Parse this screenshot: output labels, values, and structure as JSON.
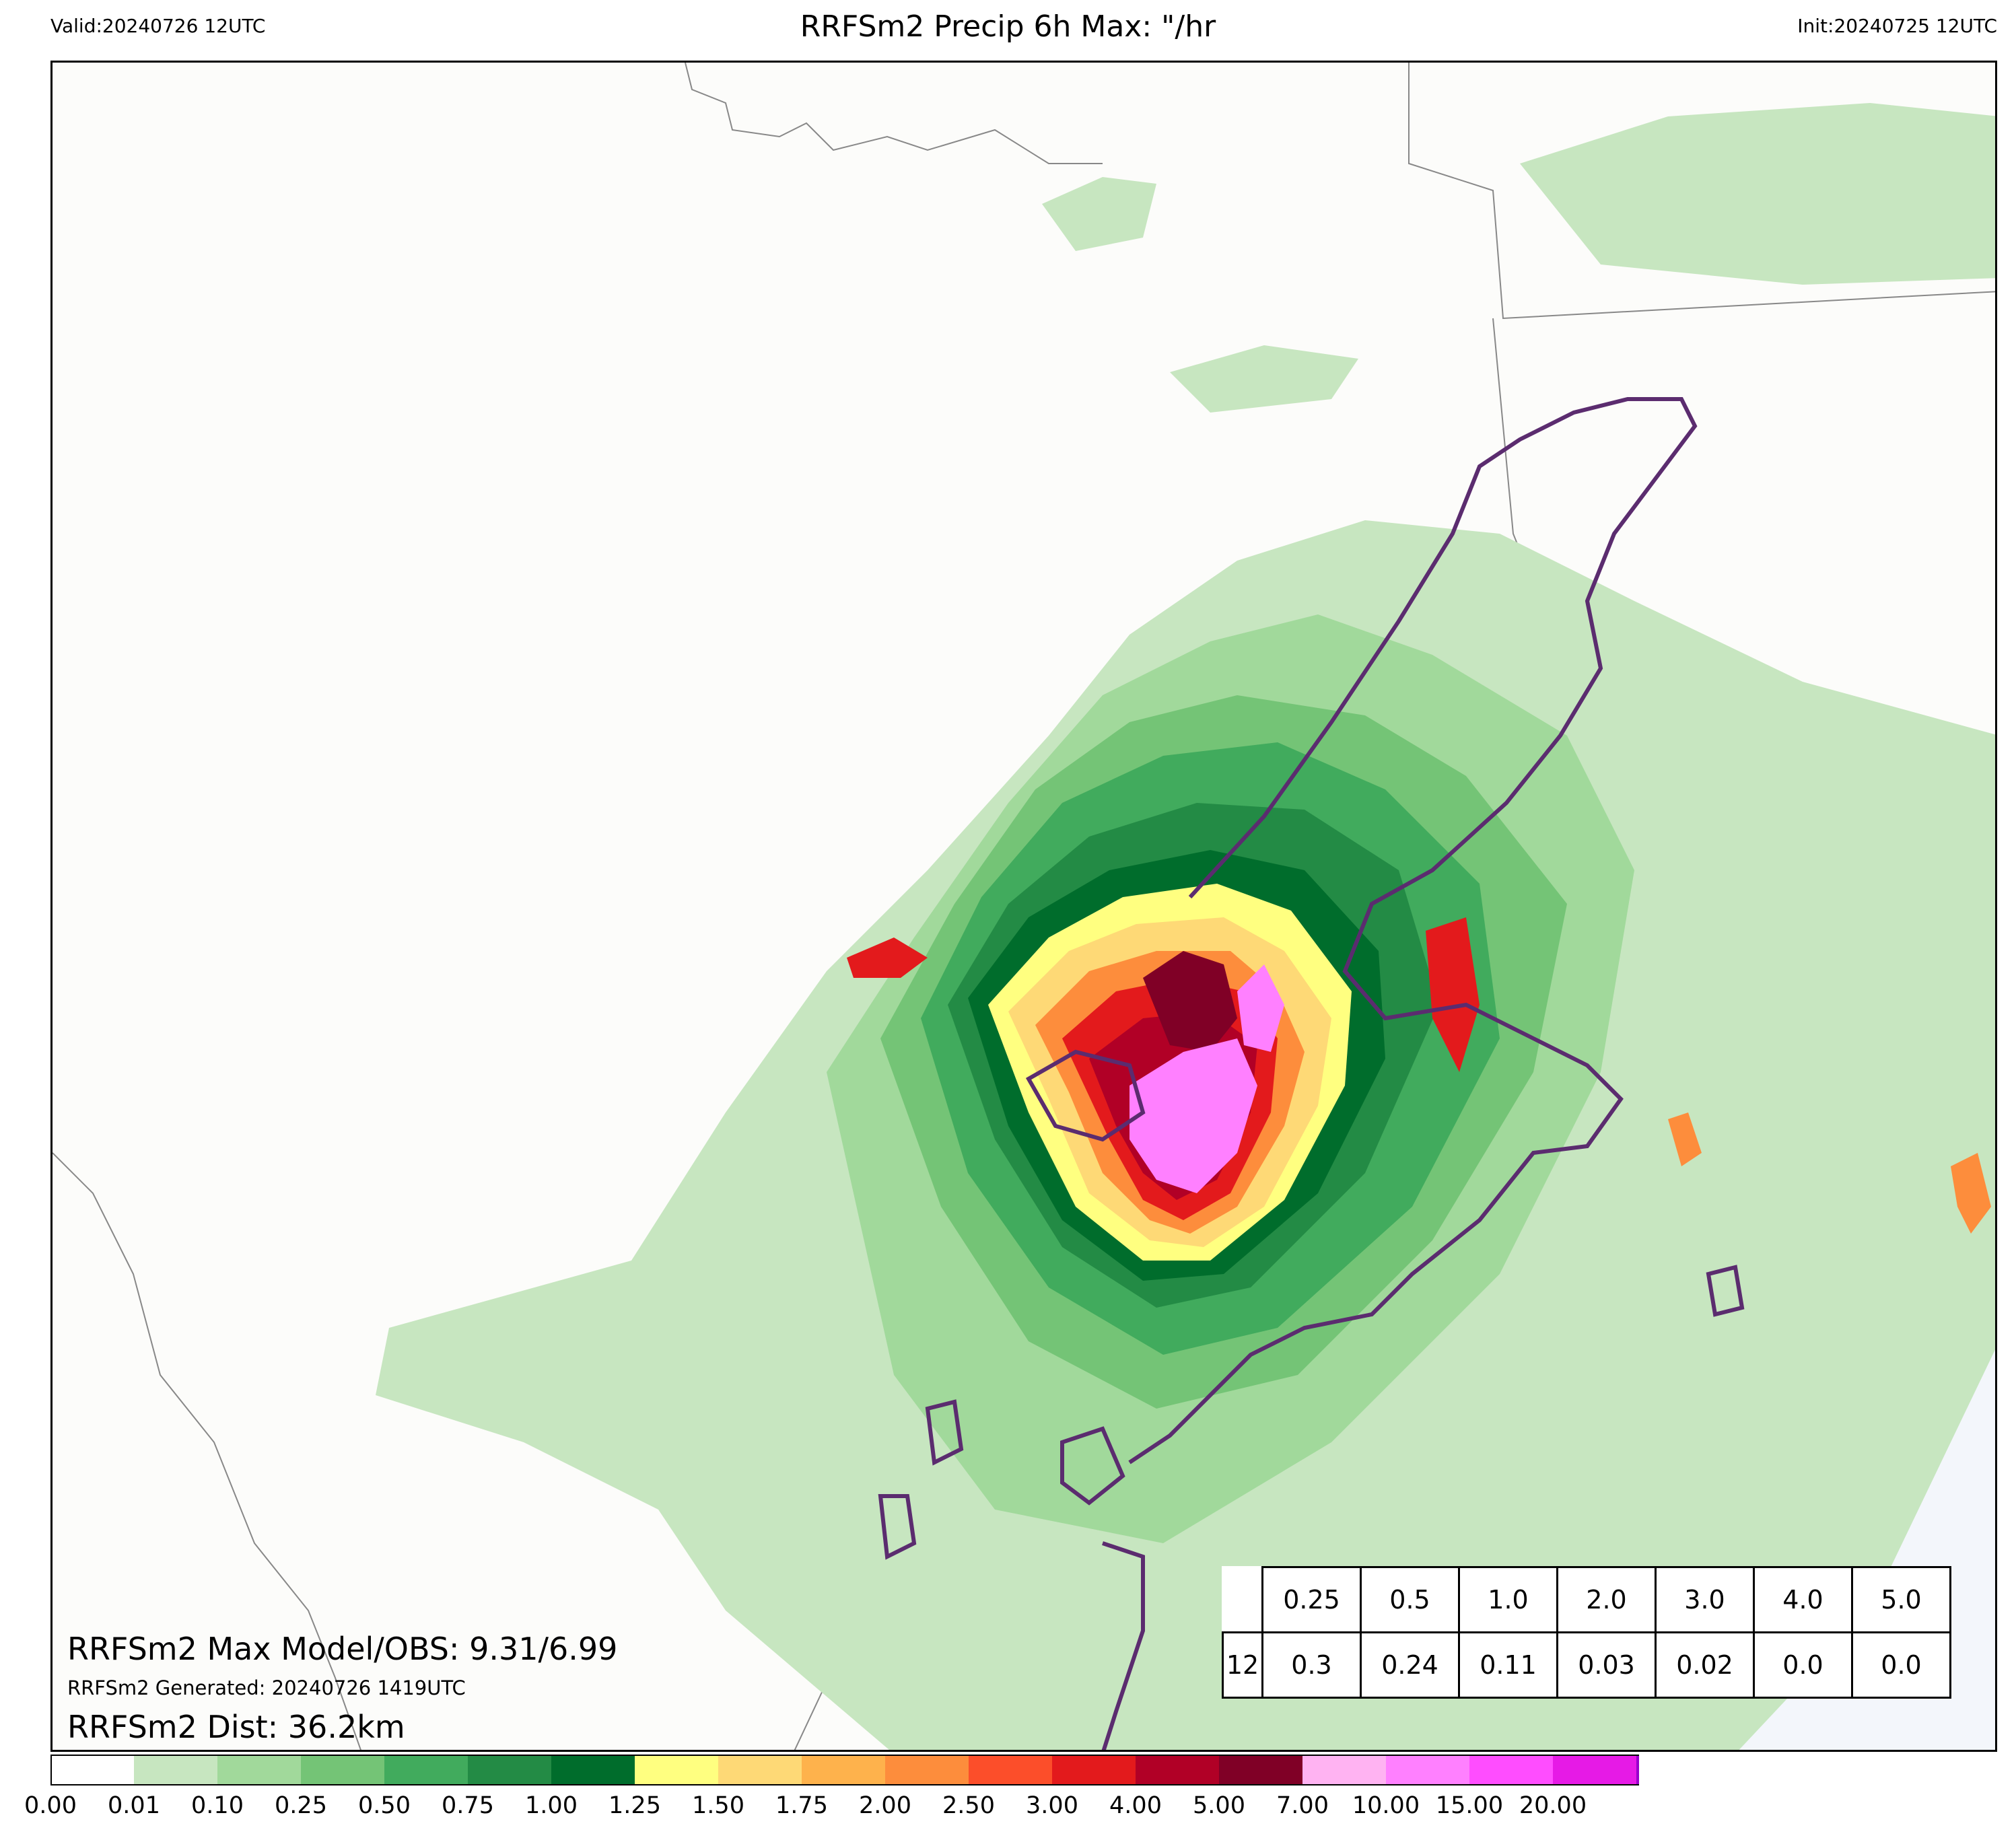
{
  "header": {
    "valid": "Valid:20240726 12UTC",
    "title": "RRFSm2 Precip 6h Max: \"/hr",
    "init": "Init:20240725 12UTC"
  },
  "annotations": {
    "max_model_obs": "RRFSm2 Max Model/OBS: 9.31/6.99",
    "generated": "RRFSm2 Generated: 20240726 1419UTC",
    "dist": "RRFSm2 Dist: 36.2km"
  },
  "table": {
    "header": [
      "0.25",
      "0.5",
      "1.0",
      "2.0",
      "3.0",
      "4.0",
      "5.0"
    ],
    "row_label": "12",
    "row": [
      "0.3",
      "0.24",
      "0.11",
      "0.03",
      "0.02",
      "0.0",
      "0.0"
    ]
  },
  "colorbar": {
    "ticks": [
      "0.00",
      "0.01",
      "0.10",
      "0.25",
      "0.50",
      "0.75",
      "1.00",
      "1.25",
      "1.50",
      "1.75",
      "2.00",
      "2.50",
      "3.00",
      "4.00",
      "5.00",
      "7.00",
      "10.00",
      "15.00",
      "20.00"
    ],
    "colors": [
      "#ffffff",
      "#c7e6c0",
      "#a1d99b",
      "#74c476",
      "#41ab5d",
      "#238b45",
      "#006d2c",
      "#ffff80",
      "#fed976",
      "#feb24c",
      "#fd8d3c",
      "#fc4e2a",
      "#e31a1c",
      "#b10026",
      "#800026",
      "#ffb3f2",
      "#ff80ff",
      "#ff4dff",
      "#e61ae6",
      "#9900cc"
    ],
    "extend_color": "#7a00a8"
  },
  "map": {
    "land_color": "#fcfcfa",
    "water_color": "#f3f6fb",
    "obs_contour_color": "#5b2c6f"
  }
}
